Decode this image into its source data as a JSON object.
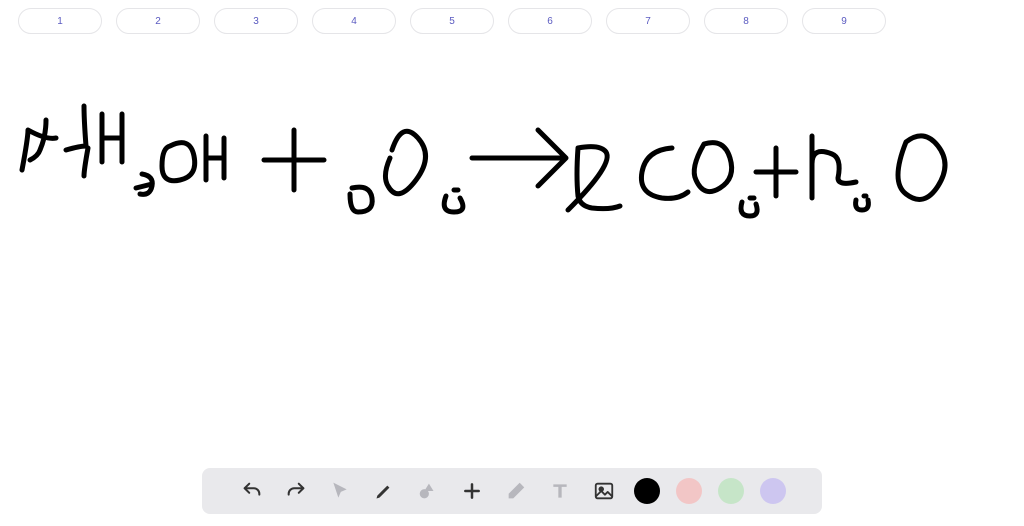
{
  "pageTabs": {
    "labels": [
      "1",
      "2",
      "3",
      "4",
      "5",
      "6",
      "7",
      "8",
      "9"
    ]
  },
  "handwriting": {
    "text": "2CH3OH + 3O2 → 2CO2 + 4H2O",
    "stroke_color": "#000000",
    "stroke_width": 5,
    "paths": [
      "M22,130 q6,-32 6,-40 q18,10 28,8 m-10,-18 q0,16 -6,30 q-2,6 -10,10",
      "M66,110 q14,-4 20,-4 q-2,-26 -2,-40 m4,42 q-4,22 -4,28",
      "M102,74 l0,48 m0,-24 l20,0 m0,-24 l0,48",
      "M136,148 q8,-2 16,-4 m-10,-10 q12,2 10,12 q-2,10 -12,8",
      "M170,106 q20,-10 24,10 q4,20 -14,24 q-18,4 -18,-14 q0,-18 8,-20",
      "M206,96 q0,26 0,44 m0,-22 l18,0 m0,-20 q0,20 0,40",
      "M264,120 l60,0 m-30,-30 l0,60",
      "M352,148 q18,-4 20,10 q2,14 -14,14 q-8,0 -8,-18",
      "M392,110 q10,-30 26,-12 q16,18 -2,42 q-18,24 -28,6 q-6,-10 2,-28",
      "M446,156 q-6,16 8,16 q14,0 6,-14 m-6,-8 l4,0",
      "M472,118 l90,0 m-24,-28 l28,28 l-28,28",
      "M568,170 q46,-46 38,-58 q-6,-8 -28,-4 q-2,28 0,48 q2,10 14,12 q18,2 28,-2",
      "M672,108 q-26,2 -30,24 q-4,22 20,26 q16,2 26,-6",
      "M704,104 q20,-6 26,14 q6,20 -10,30 q-16,10 -24,-8 q-6,-12 8,-36",
      "M742,162 q-4,14 8,14 q10,0 6,-12 m-6,-6 l4,0",
      "M776,108 l0,48 m-20,-24 l40,0",
      "M812,96 l0,62 m0,-34 q0,-18 20,-10 q10,4 6,24 q0,8 18,4",
      "M856,160 q-2,10 6,10 q8,0 6,-10 m-4,-4 l2,0",
      "M906,102 q18,-14 32,4 q14,18 0,40 q-14,22 -32,8 q-16,-12 0,-52"
    ]
  },
  "toolbar": {
    "background": "#e9e9ec",
    "icons": {
      "undo": "undo-icon",
      "redo": "redo-icon",
      "pointer": "pointer-icon",
      "pencil": "pencil-icon",
      "shapes": "shapes-icon",
      "plus": "plus-icon",
      "eraser": "eraser-icon",
      "text": "text-icon",
      "image": "image-icon"
    },
    "colors": {
      "black": "#000000",
      "pink": "#f2c6c6",
      "green": "#c6e5c8",
      "purple": "#cdc6f0"
    },
    "active_color": "black",
    "muted": [
      "pointer",
      "shapes",
      "eraser",
      "text"
    ]
  }
}
